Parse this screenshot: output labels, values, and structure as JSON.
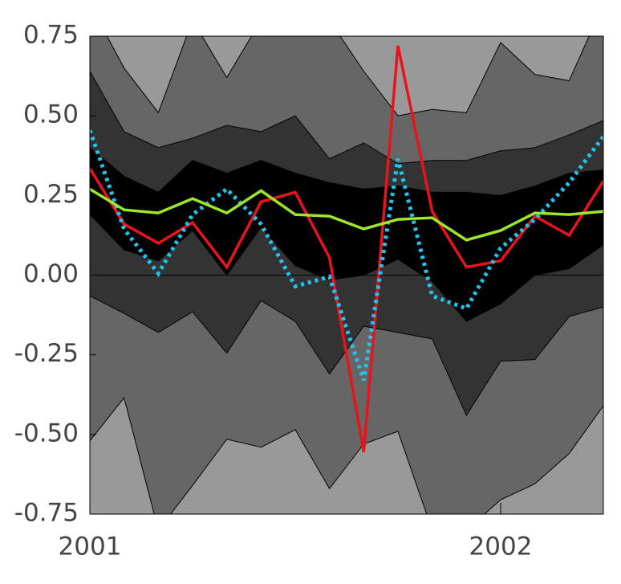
{
  "chart_data": {
    "type": "fan",
    "x": [
      2001,
      2001.0833,
      2001.1667,
      2001.25,
      2001.3333,
      2001.4167,
      2001.5,
      2001.5833,
      2001.6667,
      2001.75,
      2001.8333,
      2001.9167,
      2002,
      2002.0833,
      2002.1667,
      2002.25
    ],
    "xlim": [
      2001,
      2002.25
    ],
    "xticks": [
      2001,
      2002
    ],
    "ylim": [
      -0.75,
      0.75
    ],
    "yticks": [
      {
        "value": -0.75,
        "label": "-0.75"
      },
      {
        "value": -0.5,
        "label": "-0.50"
      },
      {
        "value": -0.25,
        "label": "-0.25"
      },
      {
        "value": 0,
        "label": "0.00"
      },
      {
        "value": 0.25,
        "label": "0.25"
      },
      {
        "value": 0.5,
        "label": "0.50"
      },
      {
        "value": 0.75,
        "label": "0.75"
      }
    ],
    "background_color": "#999999",
    "band_colors": [
      "#666666",
      "#333333",
      "#000000",
      "#333333",
      "#666666"
    ],
    "bounds": [
      [
        0.85,
        0.65,
        0.51,
        0.8,
        0.62,
        0.8,
        0.8,
        0.8,
        0.64,
        0.5,
        0.52,
        0.51,
        0.73,
        0.63,
        0.61,
        0.85
      ],
      [
        0.64,
        0.45,
        0.4,
        0.43,
        0.47,
        0.45,
        0.5,
        0.365,
        0.415,
        0.35,
        0.36,
        0.36,
        0.39,
        0.4,
        0.44,
        0.485
      ],
      [
        0.4,
        0.31,
        0.26,
        0.36,
        0.32,
        0.36,
        0.32,
        0.29,
        0.27,
        0.28,
        0.26,
        0.26,
        0.25,
        0.28,
        0.32,
        0.33
      ],
      [
        0.19,
        0.08,
        0.045,
        0.14,
        0.0,
        0.15,
        0.03,
        -0.015,
        0.0,
        0.05,
        -0.02,
        -0.145,
        -0.09,
        0.0,
        0.02,
        0.095
      ],
      [
        -0.065,
        -0.12,
        -0.18,
        -0.115,
        -0.245,
        -0.08,
        -0.145,
        -0.31,
        -0.16,
        -0.18,
        -0.2,
        -0.44,
        -0.27,
        -0.265,
        -0.13,
        -0.1
      ],
      [
        -0.52,
        -0.385,
        -0.8,
        -0.66,
        -0.515,
        -0.54,
        -0.485,
        -0.67,
        -0.53,
        -0.49,
        -0.8,
        -0.8,
        -0.705,
        -0.655,
        -0.56,
        -0.41
      ]
    ],
    "series": [
      {
        "color": "#e8141c",
        "dash": "solid",
        "values": [
          0.335,
          0.16,
          0.1,
          0.165,
          0.025,
          0.23,
          0.26,
          0.055,
          -0.555,
          0.72,
          0.2,
          0.025,
          0.045,
          0.185,
          0.125,
          0.295
        ]
      },
      {
        "color": "#22c4ee",
        "dash": "dotted",
        "values": [
          0.455,
          0.145,
          0.005,
          0.19,
          0.27,
          0.16,
          -0.035,
          -0.005,
          -0.33,
          0.365,
          -0.065,
          -0.105,
          0.085,
          0.175,
          0.29,
          0.435
        ]
      },
      {
        "color": "#9ee62a",
        "dash": "solid",
        "values": [
          0.27,
          0.205,
          0.195,
          0.24,
          0.195,
          0.265,
          0.19,
          0.185,
          0.145,
          0.175,
          0.18,
          0.11,
          0.14,
          0.195,
          0.19,
          0.2
        ]
      }
    ]
  }
}
